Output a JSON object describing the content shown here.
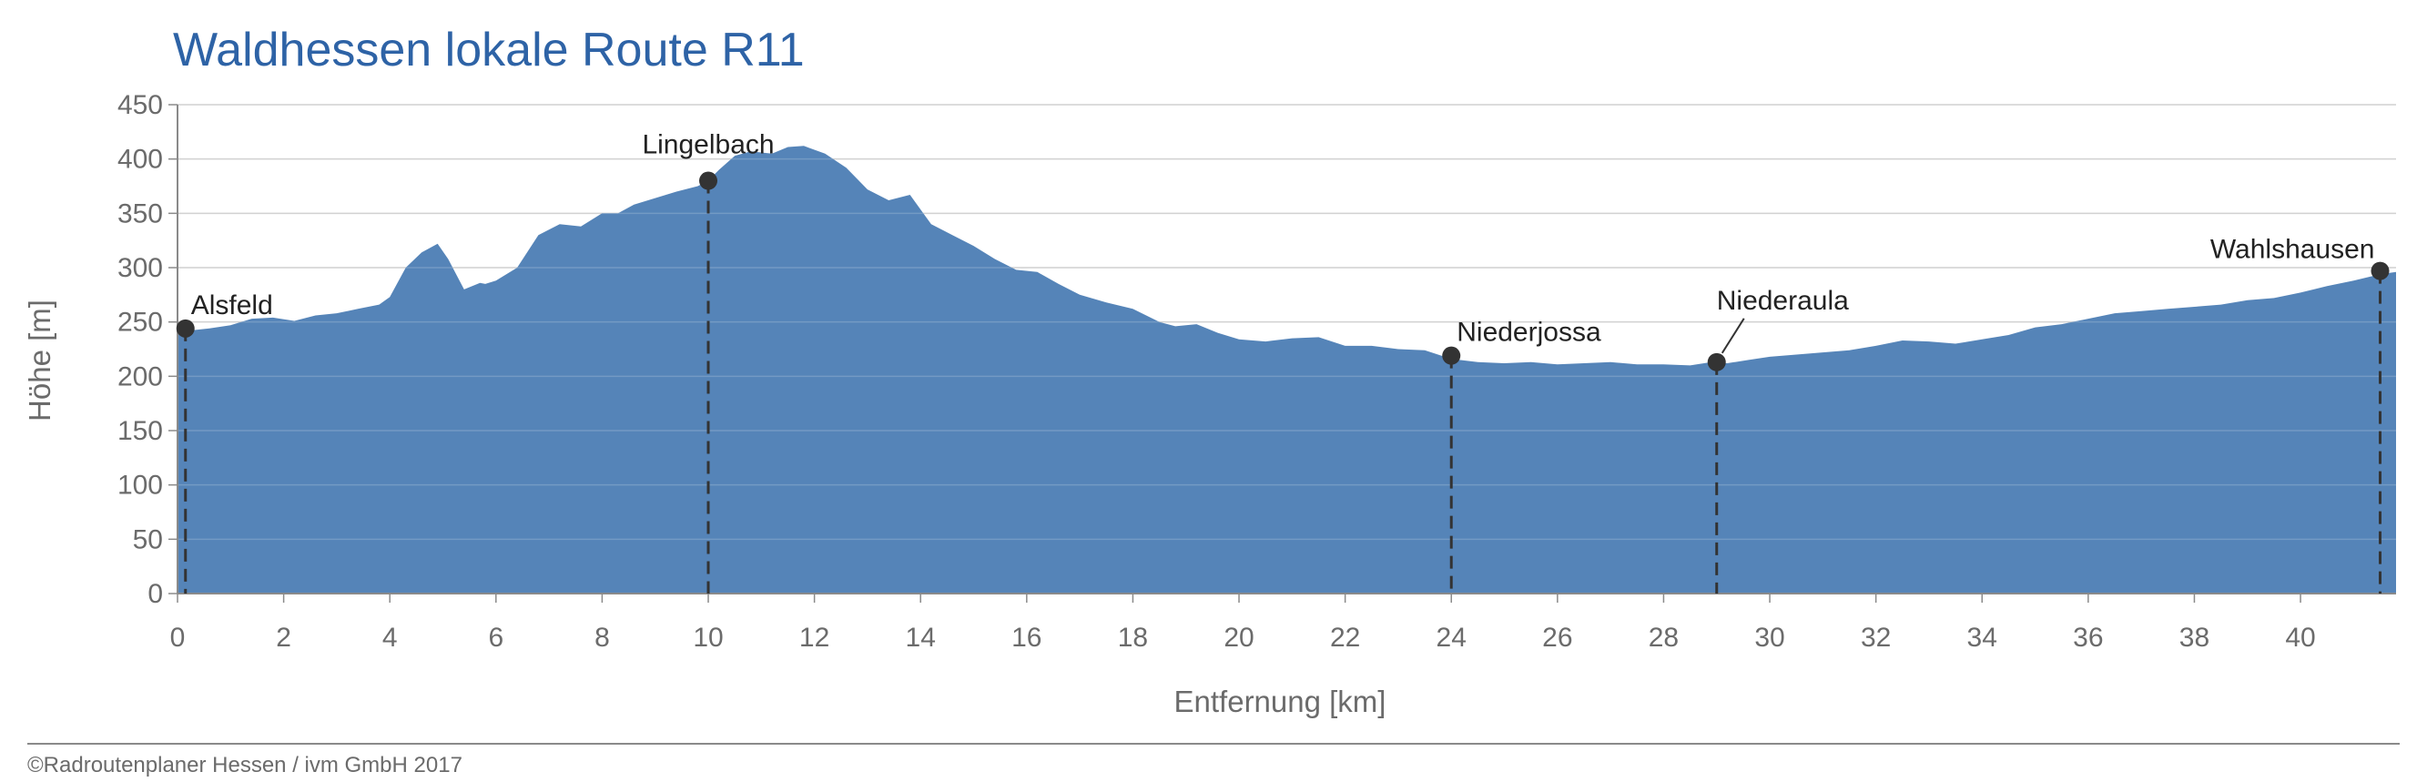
{
  "chart_data": {
    "type": "area",
    "title": "Waldhessen lokale Route R11",
    "xlabel": "Entfernung [km]",
    "ylabel": "Höhe [m]",
    "xlim": [
      0,
      41.8
    ],
    "ylim": [
      0,
      450
    ],
    "xticks": [
      0,
      2,
      4,
      6,
      8,
      10,
      12,
      14,
      16,
      18,
      20,
      22,
      24,
      26,
      28,
      30,
      32,
      34,
      36,
      38,
      40
    ],
    "yticks": [
      0,
      50,
      100,
      150,
      200,
      250,
      300,
      350,
      400,
      450
    ],
    "grid": true,
    "series": [
      {
        "x": [
          0,
          0.2,
          0.6,
          1.0,
          1.4,
          1.8,
          2.2,
          2.6,
          3.0,
          3.4,
          3.8,
          4.0,
          4.3,
          4.6,
          4.9,
          5.1,
          5.4,
          5.7,
          5.8,
          6.0,
          6.4,
          6.8,
          7.2,
          7.6,
          8.0,
          8.3,
          8.6,
          9.0,
          9.4,
          9.8,
          10.0,
          10.2,
          10.5,
          10.8,
          11.2,
          11.5,
          11.8,
          12.2,
          12.6,
          13.0,
          13.4,
          13.8,
          14.2,
          14.6,
          15.0,
          15.4,
          15.8,
          16.2,
          16.6,
          17.0,
          17.5,
          18.0,
          18.5,
          18.8,
          19.2,
          19.6,
          20.0,
          20.5,
          21.0,
          21.5,
          22.0,
          22.5,
          23.0,
          23.5,
          24.0,
          24.5,
          25.0,
          25.5,
          26.0,
          26.5,
          27.0,
          27.5,
          28.0,
          28.5,
          28.9,
          29.2,
          29.6,
          30.0,
          30.5,
          31.0,
          31.5,
          32.0,
          32.5,
          33.0,
          33.5,
          34.0,
          34.5,
          35.0,
          35.5,
          36.0,
          36.5,
          37.0,
          37.5,
          38.0,
          38.5,
          39.0,
          39.5,
          40.0,
          40.5,
          41.0,
          41.5,
          41.8
        ],
        "values": [
          240,
          242,
          244,
          247,
          253,
          254,
          251,
          256,
          258,
          262,
          266,
          273,
          300,
          314,
          322,
          308,
          280,
          286,
          285,
          288,
          300,
          330,
          340,
          338,
          350,
          350,
          358,
          364,
          370,
          375,
          380,
          390,
          403,
          407,
          405,
          411,
          412,
          405,
          392,
          372,
          362,
          367,
          340,
          330,
          320,
          308,
          298,
          296,
          285,
          275,
          268,
          262,
          250,
          246,
          248,
          240,
          234,
          232,
          235,
          236,
          228,
          228,
          225,
          224,
          216,
          213,
          212,
          213,
          211,
          212,
          213,
          211,
          211,
          210,
          213,
          212,
          215,
          218,
          220,
          222,
          224,
          228,
          233,
          232,
          230,
          234,
          238,
          245,
          248,
          253,
          258,
          260,
          262,
          264,
          266,
          270,
          272,
          277,
          283,
          288,
          294,
          296
        ]
      }
    ],
    "markers": [
      {
        "label": "Alsfeld",
        "x": 0.15,
        "y": 244
      },
      {
        "label": "Lingelbach",
        "x": 10.0,
        "y": 380
      },
      {
        "label": "Niederjossa",
        "x": 24.0,
        "y": 219
      },
      {
        "label": "Niederaula",
        "x": 29.0,
        "y": 213
      },
      {
        "label": "Wahlshausen",
        "x": 41.5,
        "y": 297
      }
    ],
    "colors": {
      "fill": "#5584b8",
      "title": "#2e63a6",
      "marker": "#333333"
    }
  },
  "copyright": "©Radroutenplaner Hessen / ivm GmbH 2017"
}
